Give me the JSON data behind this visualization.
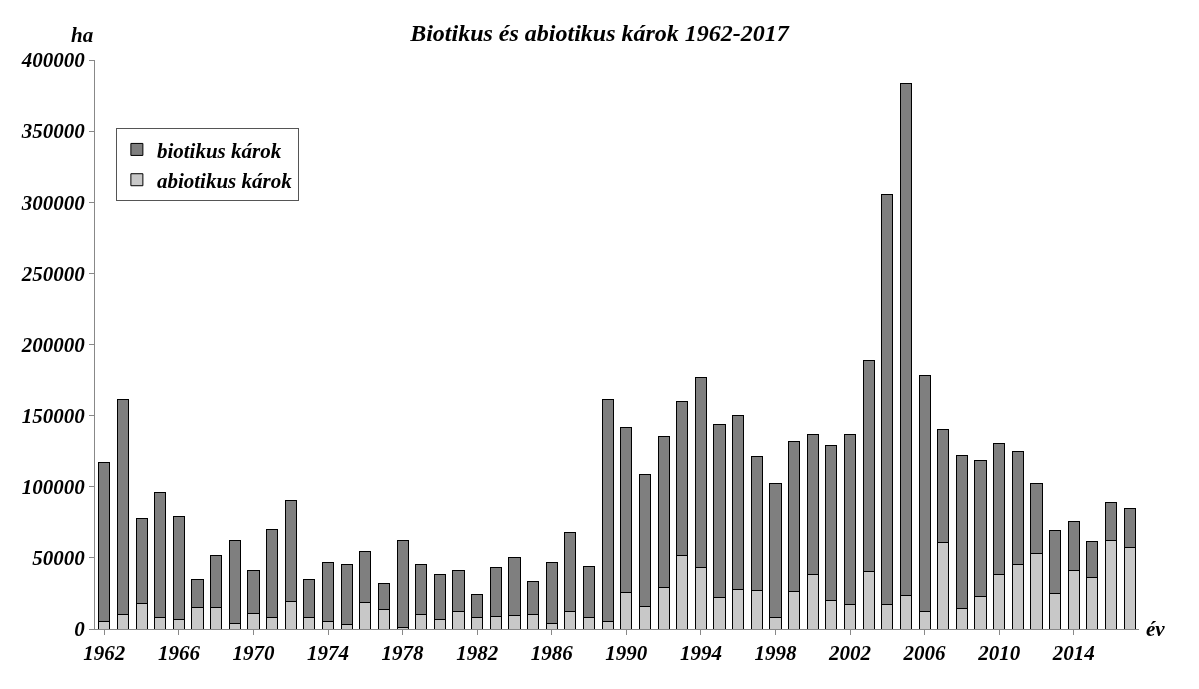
{
  "chart_data": {
    "type": "bar",
    "title": "Biotikus és abiotikus károk 1962-2017",
    "xlabel": "év",
    "ylabel": "ha",
    "categories": [
      "1962",
      null,
      null,
      null,
      "1966",
      null,
      null,
      null,
      "1970",
      null,
      null,
      null,
      "1974",
      null,
      null,
      null,
      "1978",
      null,
      null,
      null,
      "1982",
      null,
      null,
      null,
      "1986",
      null,
      null,
      null,
      "1990",
      null,
      null,
      null,
      "1994",
      null,
      null,
      null,
      "1998",
      null,
      null,
      null,
      "2002",
      null,
      null,
      null,
      "2006",
      null,
      null,
      null,
      "2010",
      null,
      null,
      null,
      "2014",
      null,
      null,
      null
    ],
    "stacked": true,
    "series": [
      {
        "name": "abiotikus károk",
        "color": "#c8c8c8",
        "values": [
          5000,
          10000,
          18000,
          8000,
          7000,
          15000,
          15000,
          4000,
          11000,
          8000,
          19500,
          8000,
          5000,
          3000,
          18500,
          13500,
          1000,
          10500,
          7000,
          12500,
          8000,
          9000,
          9500,
          10500,
          4000,
          12000,
          8000,
          5500,
          26000,
          15500,
          29000,
          52000,
          43000,
          22000,
          28000,
          27000,
          8000,
          26500,
          38000,
          20000,
          17000,
          40500,
          17000,
          23500,
          12500,
          60500,
          14500,
          22500,
          38000,
          45500,
          53000,
          25000,
          41000,
          36000,
          62000,
          57500
        ]
      },
      {
        "name": "biotikus károk",
        "color": "#7f7f7f",
        "values": [
          112000,
          151000,
          59500,
          88000,
          72000,
          20000,
          37000,
          58000,
          30000,
          62000,
          70500,
          27000,
          42000,
          42000,
          36000,
          18500,
          61000,
          34500,
          31500,
          28500,
          16000,
          34500,
          41000,
          23000,
          42500,
          56000,
          36000,
          155500,
          115500,
          93000,
          106000,
          108000,
          134000,
          122000,
          122000,
          94000,
          94000,
          105000,
          98500,
          109000,
          119500,
          148500,
          288500,
          360000,
          165500,
          80000,
          107500,
          96000,
          92500,
          79000,
          49000,
          44000,
          34500,
          25500,
          27000,
          27500
        ]
      }
    ],
    "ylim": [
      0,
      400000
    ],
    "yticks": [
      0,
      50000,
      100000,
      150000,
      200000,
      250000,
      300000,
      350000,
      400000
    ],
    "legend": "top left"
  }
}
